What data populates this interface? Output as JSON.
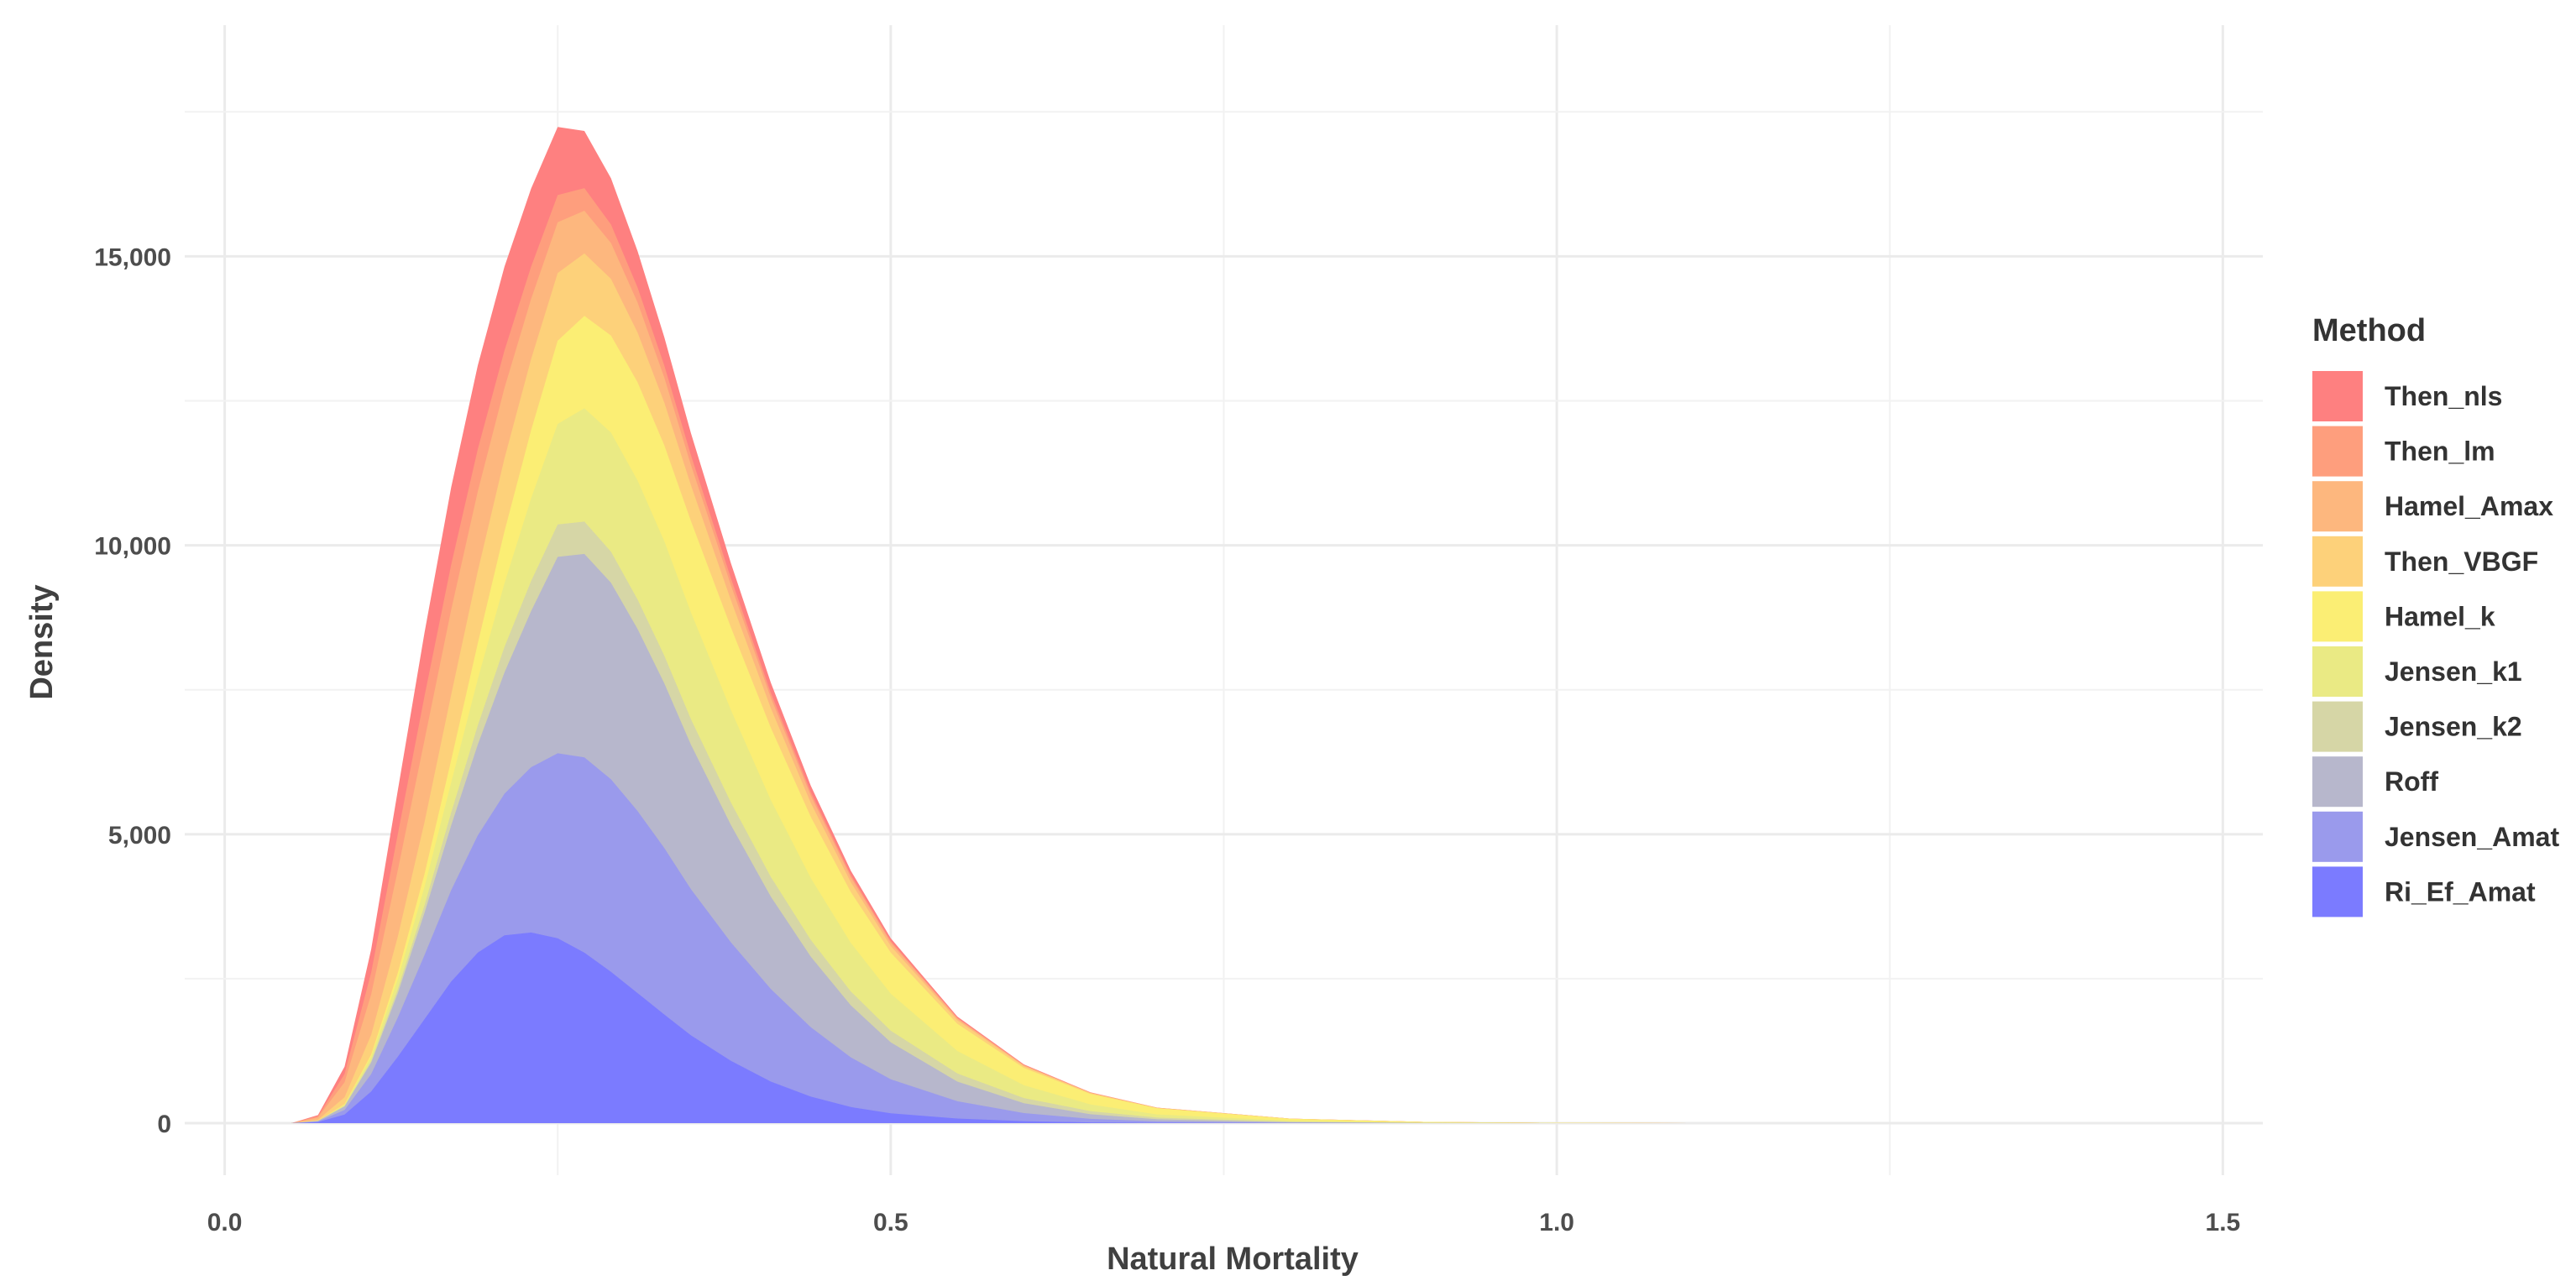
{
  "chart_data": {
    "type": "area",
    "stacked": true,
    "xlabel": "Natural Mortality",
    "ylabel": "Density",
    "xlim": [
      -0.03,
      1.53
    ],
    "ylim": [
      -900,
      19000
    ],
    "x_ticks": [
      0.0,
      0.5,
      1.0,
      1.5
    ],
    "x_tick_labels": [
      "0.0",
      "0.5",
      "1.0",
      "1.5"
    ],
    "y_ticks": [
      0,
      5000,
      10000,
      15000
    ],
    "y_tick_labels": [
      "0",
      "5,000",
      "10,000",
      "15,000"
    ],
    "grid": true,
    "legend": {
      "title": "Method",
      "position": "right"
    },
    "x": [
      0.05,
      0.07,
      0.09,
      0.11,
      0.13,
      0.15,
      0.17,
      0.19,
      0.21,
      0.23,
      0.25,
      0.27,
      0.29,
      0.31,
      0.33,
      0.35,
      0.38,
      0.41,
      0.44,
      0.47,
      0.5,
      0.55,
      0.6,
      0.65,
      0.7,
      0.8,
      0.9,
      1.0,
      1.1,
      1.2
    ],
    "series": [
      {
        "name": "Ri_Ef_Amat",
        "color": "#7b7bff",
        "values": [
          0,
          20,
          150,
          550,
          1150,
          1800,
          2450,
          2950,
          3250,
          3300,
          3200,
          2950,
          2620,
          2250,
          1880,
          1520,
          1080,
          720,
          460,
          280,
          170,
          80,
          35,
          14,
          6,
          2,
          0,
          0,
          0,
          0
        ]
      },
      {
        "name": "Jensen_Amat",
        "color": "#9a9aec",
        "values": [
          0,
          10,
          80,
          300,
          680,
          1110,
          1580,
          2030,
          2450,
          2860,
          3200,
          3380,
          3330,
          3150,
          2880,
          2530,
          2050,
          1600,
          1200,
          860,
          590,
          300,
          140,
          60,
          25,
          6,
          1,
          0,
          0,
          0
        ]
      },
      {
        "name": "Roff",
        "color": "#b7b7cc",
        "values": [
          0,
          10,
          60,
          200,
          420,
          730,
          1120,
          1570,
          2100,
          2700,
          3400,
          3520,
          3400,
          3150,
          2850,
          2500,
          2030,
          1600,
          1220,
          900,
          640,
          340,
          170,
          80,
          36,
          8,
          2,
          0,
          0,
          0
        ]
      },
      {
        "name": "Jensen_k2",
        "color": "#d6d6a6",
        "values": [
          0,
          0,
          10,
          30,
          70,
          130,
          220,
          330,
          440,
          520,
          560,
          560,
          540,
          510,
          480,
          440,
          390,
          340,
          290,
          240,
          200,
          140,
          90,
          55,
          30,
          10,
          3,
          1,
          0,
          0
        ]
      },
      {
        "name": "Jensen_k1",
        "color": "#eaea84",
        "values": [
          0,
          0,
          20,
          70,
          170,
          320,
          520,
          800,
          1100,
          1430,
          1740,
          1960,
          2060,
          2060,
          1980,
          1850,
          1600,
          1330,
          1070,
          840,
          640,
          390,
          220,
          115,
          55,
          15,
          4,
          1,
          0,
          0
        ]
      },
      {
        "name": "Hamel_k",
        "color": "#fbee74",
        "values": [
          0,
          0,
          10,
          40,
          110,
          220,
          390,
          620,
          900,
          1180,
          1440,
          1600,
          1680,
          1700,
          1660,
          1580,
          1430,
          1250,
          1060,
          880,
          710,
          470,
          300,
          180,
          105,
          35,
          12,
          4,
          1,
          0
        ]
      },
      {
        "name": "Then_VBGF",
        "color": "#fdd17a",
        "values": [
          0,
          20,
          120,
          340,
          630,
          900,
          1130,
          1250,
          1260,
          1230,
          1170,
          1080,
          980,
          860,
          740,
          620,
          470,
          340,
          240,
          170,
          115,
          60,
          30,
          15,
          7,
          2,
          1,
          0,
          0,
          0
        ]
      },
      {
        "name": "Hamel_Amax",
        "color": "#fdb77e",
        "values": [
          0,
          40,
          260,
          700,
          1150,
          1420,
          1470,
          1380,
          1220,
          1040,
          880,
          740,
          620,
          520,
          430,
          350,
          260,
          180,
          125,
          85,
          58,
          30,
          15,
          7,
          3,
          1,
          0,
          0,
          0,
          0
        ]
      },
      {
        "name": "Then_lm",
        "color": "#fe9e7d",
        "values": [
          0,
          20,
          140,
          380,
          620,
          760,
          780,
          730,
          650,
          560,
          470,
          390,
          320,
          260,
          210,
          170,
          120,
          85,
          58,
          40,
          28,
          14,
          7,
          3,
          1,
          0,
          0,
          0,
          0,
          0
        ]
      },
      {
        "name": "Then_nls",
        "color": "#fe8080",
        "values": [
          0,
          20,
          130,
          400,
          760,
          1100,
          1340,
          1450,
          1450,
          1350,
          1180,
          990,
          800,
          630,
          490,
          380,
          260,
          175,
          115,
          75,
          48,
          22,
          10,
          4,
          1,
          0,
          0,
          0,
          0,
          0
        ]
      }
    ]
  }
}
